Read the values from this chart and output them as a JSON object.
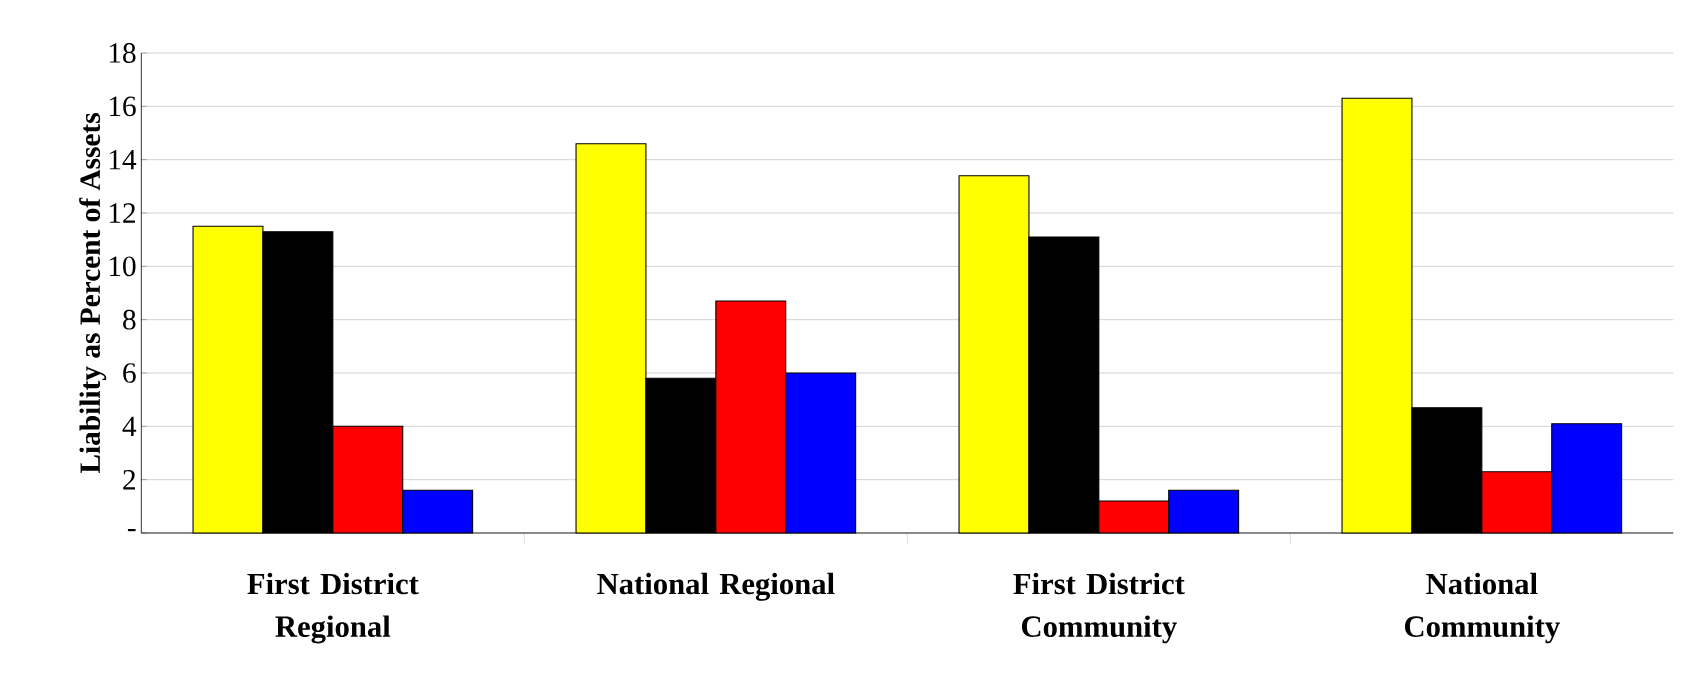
{
  "chart_data": {
    "type": "bar",
    "ylabel": "Liability as Percent of Assets",
    "categories": [
      "First District Regional",
      "National Regional",
      "First District Community",
      "National Community"
    ],
    "series": [
      {
        "color": "#ffff00",
        "values": [
          11.5,
          14.6,
          13.4,
          16.3
        ]
      },
      {
        "color": "#000000",
        "values": [
          11.3,
          5.8,
          11.1,
          4.7
        ]
      },
      {
        "color": "#ff0000",
        "values": [
          4.0,
          8.7,
          1.2,
          2.3
        ]
      },
      {
        "color": "#0000ff",
        "values": [
          1.6,
          6.0,
          1.6,
          4.1
        ]
      }
    ],
    "ylim": [
      0,
      18
    ],
    "yticks": [
      {
        "value": 0,
        "label": "-"
      },
      2,
      4,
      6,
      8,
      10,
      12,
      14,
      16,
      18
    ],
    "grid": "y"
  }
}
